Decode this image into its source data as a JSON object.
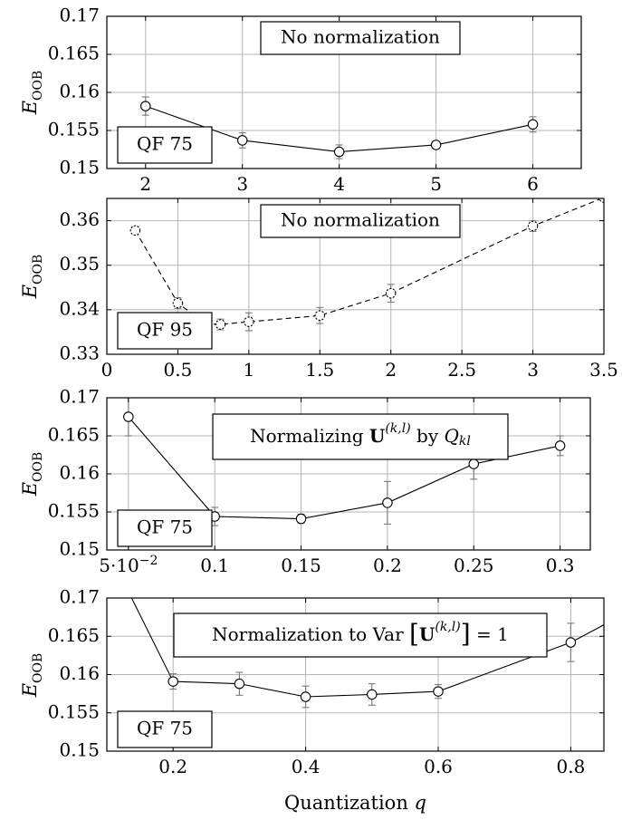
{
  "chart_data": [
    {
      "type": "line",
      "title": "",
      "annotation": "No normalization",
      "tag": "QF 75",
      "ylabel": "E",
      "ylabel_sub": "OOB",
      "xlabel": "",
      "xlim": [
        1.6,
        6.5
      ],
      "ylim": [
        0.15,
        0.17
      ],
      "xticks": [
        2,
        3,
        4,
        5,
        6
      ],
      "xtick_labels": [
        "2",
        "3",
        "4",
        "5",
        "6"
      ],
      "yticks": [
        0.15,
        0.155,
        0.16,
        0.165,
        0.17
      ],
      "ytick_labels": [
        "0.15",
        "0.155",
        "0.16",
        "0.165",
        "0.17"
      ],
      "grid": true,
      "dashed": false,
      "series": [
        {
          "x": [
            2,
            3,
            4,
            5,
            6
          ],
          "y": [
            0.1582,
            0.1537,
            0.1522,
            0.1531,
            0.1558
          ],
          "err": [
            0.0012,
            0.001,
            0.0009,
            0.0005,
            0.001
          ]
        }
      ]
    },
    {
      "type": "line",
      "title": "",
      "annotation": "No normalization",
      "tag": "QF 95",
      "ylabel": "E",
      "ylabel_sub": "OOB",
      "xlabel": "",
      "xlim": [
        0,
        3.5
      ],
      "ylim": [
        0.33,
        0.365
      ],
      "xticks": [
        0,
        0.5,
        1,
        1.5,
        2,
        2.5,
        3,
        3.5
      ],
      "xtick_labels": [
        "0",
        "0.5",
        "1",
        "1.5",
        "2",
        "2.5",
        "3",
        "3.5"
      ],
      "yticks": [
        0.33,
        0.34,
        0.35,
        0.36
      ],
      "ytick_labels": [
        "0.33",
        "0.34",
        "0.35",
        "0.36"
      ],
      "grid": true,
      "dashed": true,
      "series": [
        {
          "x": [
            0.2,
            0.5,
            0.7,
            0.8,
            1.0,
            1.5,
            2.0,
            3.0,
            3.5
          ],
          "y": [
            0.3578,
            0.3415,
            0.3368,
            0.3367,
            0.3373,
            0.3387,
            0.3437,
            0.3588,
            0.3652
          ],
          "err": [
            0.0006,
            0.0012,
            0.002,
            0.0012,
            0.002,
            0.0018,
            0.002,
            0.0012,
            null
          ]
        }
      ]
    },
    {
      "type": "line",
      "title": "",
      "annotation_pre": "Normalizing ",
      "annotation_bold": "U",
      "annotation_sup": "(k,l)",
      "annotation_mid": " by ",
      "annotation_var": "Q",
      "annotation_var_sub": "kl",
      "tag": "QF 75",
      "ylabel": "E",
      "ylabel_sub": "OOB",
      "xlabel": "",
      "xlim": [
        0.0375,
        0.3175
      ],
      "ylim": [
        0.15,
        0.17
      ],
      "xticks": [
        0.05,
        0.1,
        0.15,
        0.2,
        0.25,
        0.3
      ],
      "xtick_labels": [
        "5·10",
        "0.1",
        "0.15",
        "0.2",
        "0.25",
        "0.3"
      ],
      "xtick_first_exp": "−2",
      "yticks": [
        0.15,
        0.155,
        0.16,
        0.165,
        0.17
      ],
      "ytick_labels": [
        "0.15",
        "0.155",
        "0.16",
        "0.165",
        "0.17"
      ],
      "grid": true,
      "dashed": false,
      "series": [
        {
          "x": [
            0.05,
            0.1,
            0.15,
            0.2,
            0.25,
            0.3
          ],
          "y": [
            0.1675,
            0.1544,
            0.1541,
            0.1562,
            0.1613,
            0.1637
          ],
          "err": [
            0.0025,
            0.0012,
            0.0006,
            0.0028,
            0.002,
            0.0013
          ]
        }
      ]
    },
    {
      "type": "line",
      "title": "",
      "annotation_pre": "Normalization to Var ",
      "annotation_bold": "U",
      "annotation_sup": "(k,l)",
      "annotation_post": " = 1",
      "tag": "QF 75",
      "ylabel": "E",
      "ylabel_sub": "OOB",
      "xlabel": "Quantization",
      "xlabel_var": "q",
      "xlim": [
        0.1,
        0.85
      ],
      "ylim": [
        0.15,
        0.17
      ],
      "xticks": [
        0.2,
        0.4,
        0.6,
        0.8
      ],
      "xtick_labels": [
        "0.2",
        "0.4",
        "0.6",
        "0.8"
      ],
      "yticks": [
        0.15,
        0.155,
        0.16,
        0.165,
        0.17
      ],
      "ytick_labels": [
        "0.15",
        "0.155",
        "0.16",
        "0.165",
        "0.17"
      ],
      "grid": true,
      "dashed": false,
      "series": [
        {
          "x": [
            0.1,
            0.2,
            0.3,
            0.4,
            0.5,
            0.6,
            0.8,
            0.85
          ],
          "y": [
            0.1765,
            0.1591,
            0.1588,
            0.1571,
            0.1574,
            0.1578,
            0.1642,
            0.1665
          ],
          "err": [
            null,
            0.001,
            0.0015,
            0.0014,
            0.0014,
            0.0009,
            0.0025,
            null
          ],
          "marker": [
            false,
            true,
            true,
            true,
            true,
            true,
            true,
            false
          ]
        }
      ]
    }
  ]
}
